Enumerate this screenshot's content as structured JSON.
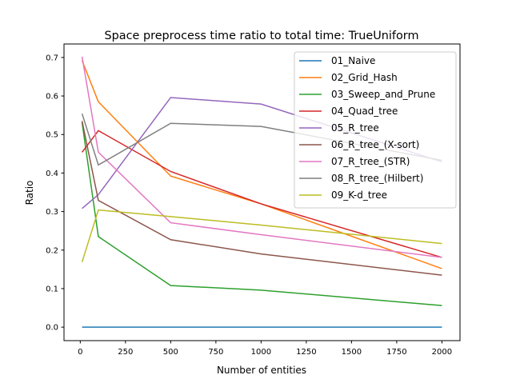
{
  "chart_data": {
    "type": "line",
    "title": "Space preprocess time ratio to total time: TrueUniform",
    "xlabel": "Number of entities",
    "ylabel": "Ratio",
    "xlim": [
      -90,
      2100
    ],
    "ylim": [
      -0.035,
      0.735
    ],
    "xticks": [
      0,
      250,
      500,
      750,
      1000,
      1250,
      1500,
      1750,
      2000
    ],
    "yticks": [
      0.0,
      0.1,
      0.2,
      0.3,
      0.4,
      0.5,
      0.6,
      0.7
    ],
    "ytick_labels": [
      "0.0",
      "0.1",
      "0.2",
      "0.3",
      "0.4",
      "0.5",
      "0.6",
      "0.7"
    ],
    "grid": false,
    "legend_position": "top-right",
    "x": [
      10,
      100,
      500,
      1000,
      2000
    ],
    "series": [
      {
        "name": "01_Naive",
        "color": "#1f77b4",
        "values": [
          0,
          0,
          0,
          0,
          0
        ]
      },
      {
        "name": "02_Grid_Hash",
        "color": "#ff7f0e",
        "values": [
          0.692,
          0.585,
          0.392,
          0.32,
          0.152
        ]
      },
      {
        "name": "03_Sweep_and_Prune",
        "color": "#2ca02c",
        "values": [
          0.531,
          0.235,
          0.108,
          0.096,
          0.056
        ]
      },
      {
        "name": "04_Quad_tree",
        "color": "#d62728",
        "values": [
          0.454,
          0.51,
          0.404,
          0.32,
          0.181
        ]
      },
      {
        "name": "05_R_tree",
        "color": "#9467bd",
        "values": [
          0.308,
          0.344,
          0.596,
          0.579,
          0.429
        ]
      },
      {
        "name": "06_R_tree_(X-sort)",
        "color": "#8c564b",
        "values": [
          0.535,
          0.329,
          0.227,
          0.19,
          0.135
        ]
      },
      {
        "name": "07_R_tree_(STR)",
        "color": "#e377c2",
        "values": [
          0.702,
          0.454,
          0.271,
          0.24,
          0.181
        ]
      },
      {
        "name": "08_R_tree_(Hilbert)",
        "color": "#7f7f7f",
        "values": [
          0.554,
          0.421,
          0.529,
          0.521,
          0.433
        ]
      },
      {
        "name": "09_K-d_tree",
        "color": "#bcbd22",
        "values": [
          0.169,
          0.304,
          0.287,
          0.265,
          0.217
        ]
      }
    ]
  }
}
